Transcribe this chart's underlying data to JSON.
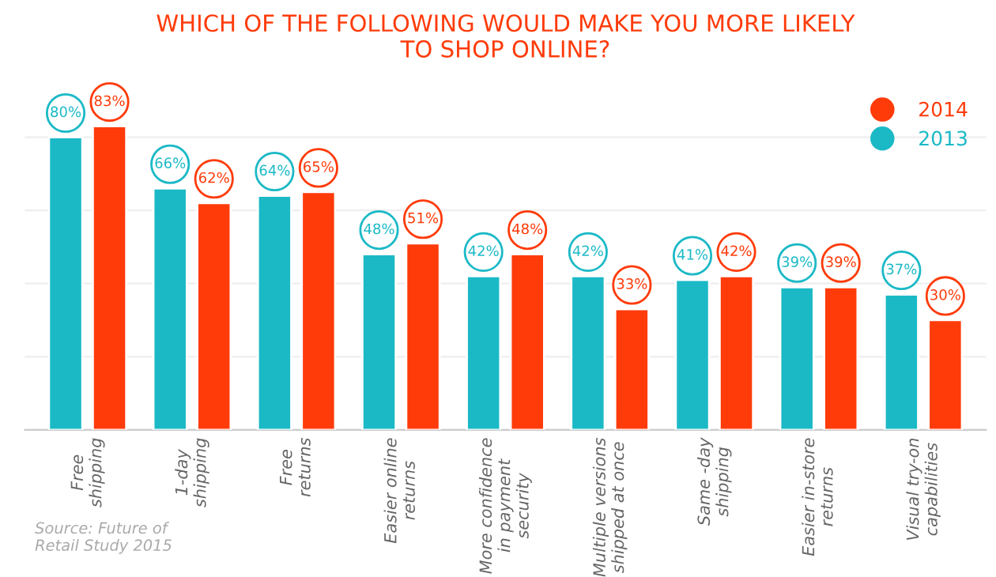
{
  "chart_data": {
    "type": "bar",
    "title": "WHICH OF THE FOLLOWING WOULD MAKE YOU MORE LIKELY\nTO SHOP ONLINE?",
    "categories": [
      "Free\nshipping",
      "1-day\nshipping",
      "Free\nreturns",
      "Easier online\nreturns",
      "More confidence\nin payment\nsecurity",
      "Multiple versions\nshipped at once",
      "Same -day\nshipping",
      "Easier in-store\nreturns",
      "Visual try-on\ncapabilities"
    ],
    "series": [
      {
        "name": "2013",
        "color": "#1bb9c6",
        "values": [
          80,
          66,
          64,
          48,
          42,
          42,
          41,
          39,
          37
        ],
        "value_labels": [
          "80%",
          "66%",
          "64%",
          "48%",
          "42%",
          "42%",
          "41%",
          "39%",
          "37%"
        ]
      },
      {
        "name": "2014",
        "color": "#ff3b0a",
        "values": [
          83,
          62,
          65,
          51,
          48,
          33,
          42,
          39,
          30
        ],
        "value_labels": [
          "83%",
          "62%",
          "65%",
          "51%",
          "48%",
          "33%",
          "42%",
          "39%",
          "30%"
        ]
      }
    ],
    "grid": "y",
    "legend": "top right",
    "annotations": [
      "Source: Future of\nRetail Study 2015"
    ]
  }
}
